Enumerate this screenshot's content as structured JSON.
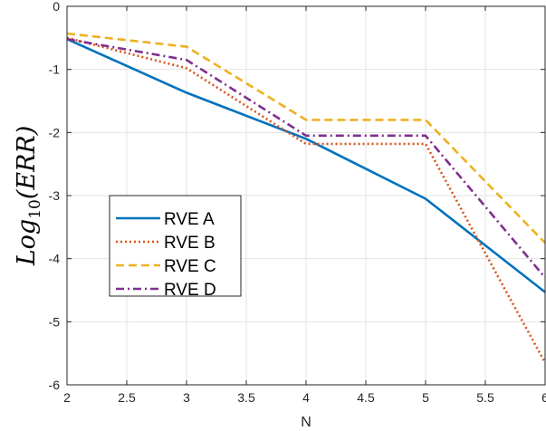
{
  "chart_data": {
    "type": "line",
    "title": "",
    "xlabel": "N",
    "ylabel": {
      "prefix": "Log",
      "subscript": "10",
      "suffix": "(ERR)"
    },
    "xlim": [
      2,
      6
    ],
    "ylim": [
      -6,
      0
    ],
    "xticks": [
      2,
      2.5,
      3,
      3.5,
      4,
      4.5,
      5,
      5.5,
      6
    ],
    "xtick_labels": [
      "2",
      "2.5",
      "3",
      "3.5",
      "4",
      "4.5",
      "5",
      "5.5",
      "6"
    ],
    "yticks": [
      -6,
      -5,
      -4,
      -3,
      -2,
      -1,
      0
    ],
    "ytick_labels": [
      "-6",
      "-5",
      "-4",
      "-3",
      "-2",
      "-1",
      "0"
    ],
    "grid": true,
    "legend_position": "lower-left",
    "series": [
      {
        "name": "RVE A",
        "color": "#0072BD",
        "style": "solid",
        "x": [
          2,
          3,
          4,
          5,
          6
        ],
        "y": [
          -0.52,
          -1.37,
          -2.1,
          -3.05,
          -4.53
        ]
      },
      {
        "name": "RVE B",
        "color": "#D95319",
        "style": "dotted",
        "x": [
          2,
          3,
          4,
          5,
          6
        ],
        "y": [
          -0.5,
          -0.98,
          -2.18,
          -2.18,
          -5.65
        ]
      },
      {
        "name": "RVE C",
        "color": "#EDB120",
        "style": "dashed",
        "x": [
          2,
          3,
          4,
          5,
          6
        ],
        "y": [
          -0.43,
          -0.64,
          -1.8,
          -1.8,
          -3.75
        ]
      },
      {
        "name": "RVE D",
        "color": "#7E2F8E",
        "style": "dashdot",
        "x": [
          2,
          3,
          4,
          5,
          6
        ],
        "y": [
          -0.52,
          -0.85,
          -2.05,
          -2.05,
          -4.3
        ]
      }
    ]
  }
}
